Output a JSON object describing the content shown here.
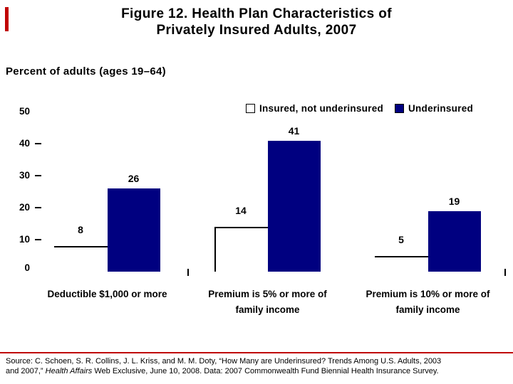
{
  "slide": {
    "title_line1": "Figure 12. Health Plan Characteristics of",
    "title_line2": "Privately Insured Adults, 2007",
    "subtitle": "Percent of adults (ages 19–64)"
  },
  "colors": {
    "navy": "#000080",
    "white_bar": "#ffffff",
    "accent_red": "#c00000",
    "text": "#000000"
  },
  "legend": {
    "items": [
      {
        "label": "Insured, not underinsured",
        "fill": "#ffffff"
      },
      {
        "label": "Underinsured",
        "fill": "#000080"
      }
    ]
  },
  "chart_data": {
    "type": "bar",
    "title": "Figure 12. Health Plan Characteristics of Privately Insured Adults, 2007",
    "ylabel": "Percent of adults (ages 19–64)",
    "ylim": [
      0,
      50
    ],
    "yticks": [
      0,
      10,
      20,
      30,
      40,
      50
    ],
    "grid": false,
    "legend_position": "top-right",
    "categories": [
      "Deductible $1,000 or more",
      "Premium is 5% or more of family income",
      "Premium is 10% or more of family income"
    ],
    "categories_lines": [
      [
        "Deductible $1,000 or more"
      ],
      [
        "Premium is 5% or more of",
        "family income"
      ],
      [
        "Premium is 10% or more of",
        "family income"
      ]
    ],
    "series": [
      {
        "name": "Insured, not underinsured",
        "values": [
          8,
          14,
          5
        ],
        "fill": "#ffffff"
      },
      {
        "name": "Underinsured",
        "values": [
          26,
          41,
          19
        ],
        "fill": "#000080"
      }
    ]
  },
  "source": {
    "line1": "Source: C. Schoen, S. R. Collins, J. L. Kriss, and M. M. Doty, “How Many are Underinsured? Trends Among U.S. Adults, 2003",
    "line2_pre": "and 2007,” ",
    "line2_italic": "Health Affairs",
    "line2_post": " Web Exclusive, June 10, 2008. Data: 2007 Commonwealth Fund Biennial Health Insurance Survey."
  }
}
